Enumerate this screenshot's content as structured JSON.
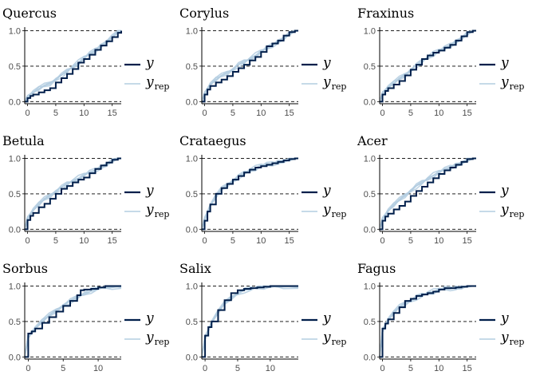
{
  "colors": {
    "y": "#011f4b",
    "yrep": "#b3cde0",
    "refline": "#000000",
    "axis": "#000000"
  },
  "legend": {
    "y_label": "y",
    "yrep_main": "y",
    "yrep_sub": "rep"
  },
  "chart_data": [
    {
      "type": "line",
      "title": "Quercus",
      "xlim": [
        -0.5,
        16.6
      ],
      "ylim": [
        -0.03,
        1.05
      ],
      "xticks": [
        0,
        5,
        10,
        15
      ],
      "yticks": [
        0.0,
        0.5,
        1.0
      ],
      "ytick_labels": [
        "0.0",
        "0.5",
        "1.0"
      ],
      "ref_lines": [
        0,
        0.5,
        1
      ],
      "series": [
        {
          "name": "y",
          "x": [
            -0.5,
            0,
            0.5,
            1,
            2,
            3,
            4,
            5,
            6,
            7,
            8,
            9,
            10,
            11,
            12,
            13,
            14,
            15,
            16,
            16.6
          ],
          "values": [
            0.0,
            0.05,
            0.08,
            0.1,
            0.13,
            0.16,
            0.19,
            0.27,
            0.33,
            0.39,
            0.46,
            0.55,
            0.6,
            0.66,
            0.73,
            0.79,
            0.85,
            0.91,
            0.97,
            1.0
          ]
        },
        {
          "name": "y_rep",
          "x": [
            -0.5,
            0,
            1,
            2,
            3,
            4,
            5,
            6,
            7,
            8,
            9,
            10,
            11,
            12,
            13,
            14,
            15,
            16,
            16.6
          ],
          "values": [
            0.0,
            0.07,
            0.13,
            0.18,
            0.22,
            0.26,
            0.32,
            0.37,
            0.43,
            0.49,
            0.55,
            0.61,
            0.67,
            0.73,
            0.79,
            0.85,
            0.91,
            0.97,
            1.0
          ]
        }
      ]
    },
    {
      "type": "line",
      "title": "Corylus",
      "xlim": [
        -0.5,
        16.6
      ],
      "ylim": [
        -0.03,
        1.05
      ],
      "xticks": [
        0,
        5,
        10,
        15
      ],
      "yticks": [
        0.0,
        0.5,
        1.0
      ],
      "ytick_labels": [
        "0.0",
        "0.5",
        "1.0"
      ],
      "ref_lines": [
        0,
        0.5,
        1
      ],
      "series": [
        {
          "name": "y",
          "x": [
            -0.5,
            0,
            0.5,
            1,
            2,
            3,
            4,
            5,
            6,
            7,
            8,
            9,
            10,
            11,
            12,
            13,
            14,
            15,
            16,
            16.6
          ],
          "values": [
            0.0,
            0.1,
            0.17,
            0.22,
            0.27,
            0.31,
            0.36,
            0.42,
            0.47,
            0.52,
            0.58,
            0.63,
            0.7,
            0.78,
            0.82,
            0.86,
            0.93,
            0.98,
            1.0,
            1.0
          ]
        },
        {
          "name": "y_rep",
          "x": [
            -0.5,
            0,
            1,
            2,
            3,
            4,
            5,
            6,
            7,
            8,
            9,
            10,
            11,
            12,
            13,
            14,
            15,
            16,
            16.6
          ],
          "values": [
            0.0,
            0.12,
            0.24,
            0.31,
            0.36,
            0.41,
            0.46,
            0.52,
            0.56,
            0.6,
            0.65,
            0.7,
            0.75,
            0.8,
            0.85,
            0.9,
            0.95,
            0.99,
            1.0
          ]
        }
      ]
    },
    {
      "type": "line",
      "title": "Fraxinus",
      "xlim": [
        -0.5,
        16.6
      ],
      "ylim": [
        -0.03,
        1.05
      ],
      "xticks": [
        0,
        5,
        10,
        15
      ],
      "yticks": [
        0.0,
        0.5,
        1.0
      ],
      "ytick_labels": [
        "0.0",
        "0.5",
        "1.0"
      ],
      "ref_lines": [
        0,
        0.5,
        1
      ],
      "series": [
        {
          "name": "y",
          "x": [
            -0.5,
            0,
            0.5,
            1,
            2,
            3,
            4,
            5,
            6,
            7,
            8,
            9,
            10,
            11,
            12,
            13,
            14,
            15,
            16,
            16.6
          ],
          "values": [
            0.0,
            0.1,
            0.15,
            0.19,
            0.24,
            0.29,
            0.37,
            0.45,
            0.52,
            0.6,
            0.65,
            0.69,
            0.72,
            0.76,
            0.8,
            0.86,
            0.92,
            0.98,
            1.0,
            1.0
          ]
        },
        {
          "name": "y_rep",
          "x": [
            -0.5,
            0,
            1,
            2,
            3,
            4,
            5,
            6,
            7,
            8,
            9,
            10,
            11,
            12,
            13,
            14,
            15,
            16,
            16.6
          ],
          "values": [
            0.0,
            0.12,
            0.2,
            0.26,
            0.32,
            0.38,
            0.45,
            0.51,
            0.57,
            0.62,
            0.67,
            0.71,
            0.75,
            0.8,
            0.85,
            0.9,
            0.95,
            0.99,
            1.0
          ]
        }
      ]
    },
    {
      "type": "line",
      "title": "Betula",
      "xlim": [
        -0.5,
        16.6
      ],
      "ylim": [
        -0.03,
        1.05
      ],
      "xticks": [
        0,
        5,
        10,
        15
      ],
      "yticks": [
        0.0,
        0.5,
        1.0
      ],
      "ytick_labels": [
        "0.0",
        "0.5",
        "1.0"
      ],
      "ref_lines": [
        0,
        0.5,
        1
      ],
      "series": [
        {
          "name": "y",
          "x": [
            -0.5,
            0,
            0.5,
            1,
            2,
            3,
            4,
            5,
            6,
            7,
            8,
            9,
            10,
            11,
            12,
            13,
            14,
            15,
            16,
            16.6
          ],
          "values": [
            0.0,
            0.13,
            0.19,
            0.23,
            0.31,
            0.36,
            0.43,
            0.5,
            0.57,
            0.61,
            0.66,
            0.7,
            0.73,
            0.79,
            0.85,
            0.9,
            0.94,
            0.98,
            1.0,
            1.0
          ]
        },
        {
          "name": "y_rep",
          "x": [
            -0.5,
            0,
            1,
            2,
            3,
            4,
            5,
            6,
            7,
            8,
            9,
            10,
            11,
            12,
            13,
            14,
            15,
            16,
            16.6
          ],
          "values": [
            0.0,
            0.16,
            0.27,
            0.35,
            0.42,
            0.48,
            0.54,
            0.59,
            0.64,
            0.68,
            0.72,
            0.76,
            0.8,
            0.84,
            0.88,
            0.92,
            0.96,
            0.99,
            1.0
          ]
        }
      ]
    },
    {
      "type": "line",
      "title": "Crataegus",
      "xlim": [
        -0.5,
        16.6
      ],
      "ylim": [
        -0.03,
        1.05
      ],
      "xticks": [
        0,
        5,
        10,
        15
      ],
      "yticks": [
        0.0,
        0.5,
        1.0
      ],
      "ytick_labels": [
        "0.0",
        "0.5",
        "1.0"
      ],
      "ref_lines": [
        0,
        0.5,
        1
      ],
      "series": [
        {
          "name": "y",
          "x": [
            -0.5,
            0,
            0.5,
            1,
            2,
            3,
            4,
            5,
            6,
            7,
            8,
            9,
            10,
            11,
            12,
            13,
            14,
            15,
            16,
            16.6
          ],
          "values": [
            0.0,
            0.12,
            0.25,
            0.35,
            0.5,
            0.58,
            0.64,
            0.7,
            0.75,
            0.8,
            0.84,
            0.87,
            0.89,
            0.91,
            0.93,
            0.95,
            0.97,
            0.99,
            1.0,
            1.0
          ]
        },
        {
          "name": "y_rep",
          "x": [
            -0.5,
            0,
            1,
            2,
            3,
            4,
            5,
            6,
            7,
            8,
            9,
            10,
            11,
            12,
            13,
            14,
            15,
            16,
            16.6
          ],
          "values": [
            0.0,
            0.15,
            0.33,
            0.46,
            0.56,
            0.63,
            0.69,
            0.74,
            0.79,
            0.83,
            0.86,
            0.89,
            0.91,
            0.93,
            0.95,
            0.97,
            0.98,
            0.99,
            1.0
          ]
        }
      ]
    },
    {
      "type": "line",
      "title": "Acer",
      "xlim": [
        -0.5,
        16.6
      ],
      "ylim": [
        -0.03,
        1.05
      ],
      "xticks": [
        0,
        5,
        10,
        15
      ],
      "yticks": [
        0.0,
        0.5,
        1.0
      ],
      "ytick_labels": [
        "0.0",
        "0.5",
        "1.0"
      ],
      "ref_lines": [
        0,
        0.5,
        1
      ],
      "series": [
        {
          "name": "y",
          "x": [
            -0.5,
            0,
            0.5,
            1,
            2,
            3,
            4,
            5,
            6,
            7,
            8,
            9,
            10,
            11,
            12,
            13,
            14,
            15,
            16,
            16.6
          ],
          "values": [
            0.0,
            0.12,
            0.18,
            0.22,
            0.28,
            0.33,
            0.39,
            0.47,
            0.54,
            0.6,
            0.66,
            0.72,
            0.78,
            0.83,
            0.87,
            0.91,
            0.95,
            0.99,
            1.0,
            1.0
          ]
        },
        {
          "name": "y_rep",
          "x": [
            -0.5,
            0,
            1,
            2,
            3,
            4,
            5,
            6,
            7,
            8,
            9,
            10,
            11,
            12,
            13,
            14,
            15,
            16,
            16.6
          ],
          "values": [
            0.0,
            0.15,
            0.26,
            0.34,
            0.41,
            0.48,
            0.55,
            0.61,
            0.66,
            0.71,
            0.76,
            0.8,
            0.84,
            0.88,
            0.91,
            0.94,
            0.97,
            0.99,
            1.0
          ]
        }
      ]
    },
    {
      "type": "line",
      "title": "Sorbus",
      "xlim": [
        -0.5,
        13.3
      ],
      "ylim": [
        -0.03,
        1.05
      ],
      "xticks": [
        0,
        5,
        10
      ],
      "yticks": [
        0.0,
        0.5,
        1.0
      ],
      "ytick_labels": [
        "0.0",
        "0.5",
        "1.0"
      ],
      "ref_lines": [
        0,
        0.5,
        1
      ],
      "series": [
        {
          "name": "y",
          "x": [
            -0.5,
            0,
            0.5,
            1,
            2,
            3,
            4,
            5,
            6,
            7,
            7.5,
            8,
            9,
            10,
            11,
            12,
            13,
            13.3
          ],
          "values": [
            0.0,
            0.33,
            0.36,
            0.4,
            0.48,
            0.56,
            0.64,
            0.72,
            0.79,
            0.87,
            0.94,
            0.95,
            0.96,
            0.98,
            1.0,
            1.0,
            1.0,
            1.0
          ]
        },
        {
          "name": "y_rep",
          "x": [
            -0.5,
            0,
            1,
            2,
            3,
            4,
            5,
            6,
            7,
            8,
            9,
            10,
            11,
            12,
            13.3
          ],
          "values": [
            0.0,
            0.3,
            0.4,
            0.5,
            0.58,
            0.66,
            0.73,
            0.79,
            0.84,
            0.89,
            0.93,
            0.96,
            0.98,
            0.99,
            1.0
          ]
        }
      ]
    },
    {
      "type": "line",
      "title": "Salix",
      "xlim": [
        -0.5,
        14.3
      ],
      "ylim": [
        -0.03,
        1.05
      ],
      "xticks": [
        0,
        5,
        10
      ],
      "yticks": [
        0.0,
        0.5,
        1.0
      ],
      "ytick_labels": [
        "0.0",
        "0.5",
        "1.0"
      ],
      "ref_lines": [
        0,
        0.5,
        1
      ],
      "series": [
        {
          "name": "y",
          "x": [
            -0.5,
            0,
            0.5,
            1,
            2,
            3,
            4,
            5,
            6,
            7,
            8,
            9,
            10,
            11,
            12,
            13,
            14,
            14.3
          ],
          "values": [
            0.0,
            0.3,
            0.42,
            0.5,
            0.66,
            0.8,
            0.9,
            0.94,
            0.96,
            0.97,
            0.98,
            0.99,
            1.0,
            1.0,
            1.0,
            1.0,
            1.0,
            1.0
          ]
        },
        {
          "name": "y_rep",
          "x": [
            -0.5,
            0,
            1,
            2,
            3,
            4,
            5,
            6,
            7,
            8,
            9,
            10,
            11,
            12,
            14.3
          ],
          "values": [
            0.0,
            0.28,
            0.48,
            0.63,
            0.75,
            0.84,
            0.9,
            0.94,
            0.96,
            0.98,
            0.99,
            0.99,
            1.0,
            1.0,
            1.0
          ]
        }
      ]
    },
    {
      "type": "line",
      "title": "Fagus",
      "xlim": [
        -0.5,
        16.6
      ],
      "ylim": [
        -0.03,
        1.05
      ],
      "xticks": [
        0,
        5,
        10,
        15
      ],
      "yticks": [
        0.0,
        0.5,
        1.0
      ],
      "ytick_labels": [
        "0.0",
        "0.5",
        "1.0"
      ],
      "ref_lines": [
        0,
        0.5,
        1
      ],
      "series": [
        {
          "name": "y",
          "x": [
            -0.5,
            0,
            0.5,
            1,
            2,
            3,
            4,
            5,
            6,
            7,
            8,
            9,
            10,
            11,
            12,
            13,
            14,
            15,
            16,
            16.6
          ],
          "values": [
            0.0,
            0.4,
            0.47,
            0.53,
            0.62,
            0.7,
            0.79,
            0.82,
            0.86,
            0.88,
            0.9,
            0.92,
            0.95,
            0.97,
            0.97,
            0.98,
            0.99,
            1.0,
            1.0,
            1.0
          ]
        },
        {
          "name": "y_rep",
          "x": [
            -0.5,
            0,
            1,
            2,
            3,
            4,
            5,
            6,
            7,
            8,
            9,
            10,
            11,
            12,
            13,
            14,
            15,
            16,
            16.6
          ],
          "values": [
            0.0,
            0.38,
            0.52,
            0.62,
            0.7,
            0.76,
            0.8,
            0.84,
            0.87,
            0.9,
            0.92,
            0.94,
            0.96,
            0.97,
            0.98,
            0.99,
            1.0,
            1.0,
            1.0
          ]
        }
      ]
    }
  ]
}
